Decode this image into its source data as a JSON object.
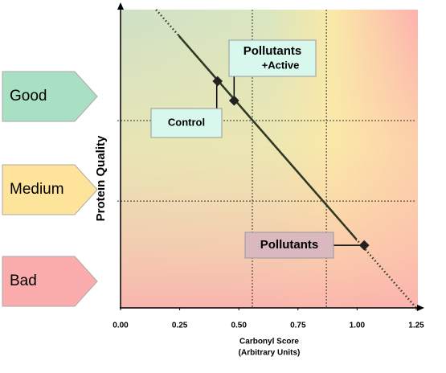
{
  "chart_data": {
    "type": "scatter",
    "x_label": [
      "Carbonyl Score",
      "(Arbitrary Units)"
    ],
    "y_label": "Protein Quality",
    "xlim": [
      0,
      1.25
    ],
    "ylim": [
      0,
      1
    ],
    "xticks": [
      {
        "value": 0,
        "label": "0.00"
      },
      {
        "value": 0.25,
        "label": "0.25"
      },
      {
        "value": 0.5,
        "label": "0.50"
      },
      {
        "value": 0.75,
        "label": "0.75"
      },
      {
        "value": 1,
        "label": "1.00"
      },
      {
        "value": 1.25,
        "label": "1.25"
      }
    ],
    "xgrid": [
      0.557,
      0.87
    ],
    "ygrid": [
      0.628,
      0.358
    ],
    "zones": [
      {
        "label": "Good",
        "color": "#a9dfc2"
      },
      {
        "label": "Medium",
        "color": "#fde49a"
      },
      {
        "label": "Bad",
        "color": "#fbadad"
      }
    ],
    "trend": {
      "x": [
        0.15,
        1.25
      ],
      "y": [
        1,
        0
      ],
      "color": "#2f3a26"
    },
    "series": [
      {
        "x": [
          0.41,
          0.48,
          1.03
        ],
        "values": [
          0.76,
          0.695,
          0.21
        ],
        "color": "#222222"
      }
    ],
    "annotations": [
      {
        "text": [
          "Control"
        ],
        "color": "#d8f8ee"
      },
      {
        "text": [
          "Pollutants",
          "+Active"
        ],
        "color": "#d8f8ee"
      },
      {
        "text": [
          "Pollutants"
        ],
        "color": "#d9b8bf"
      }
    ]
  }
}
